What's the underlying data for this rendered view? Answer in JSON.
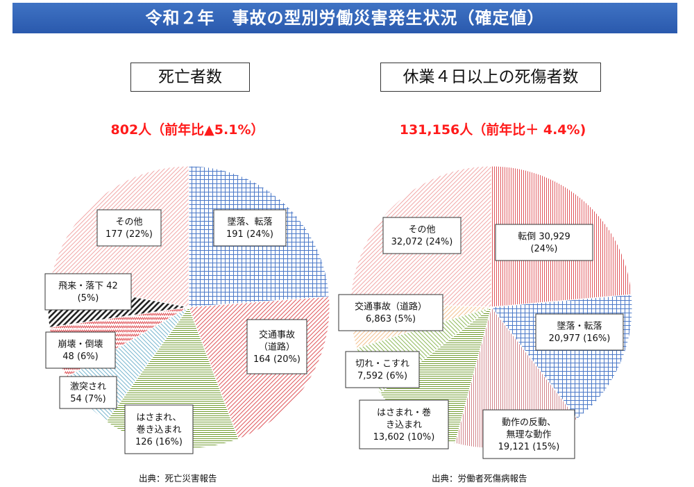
{
  "header": {
    "title": "令和２年　事故の型別労働災害発生状況（確定値）"
  },
  "charts": [
    {
      "box_title": "死亡者数",
      "total_label": "802人（前年比▲5.1%）",
      "source": "出典：死亡災害報告"
    },
    {
      "box_title": "休業４日以上の死傷者数",
      "total_label": "131,156人（前年比＋ 4.4%)",
      "source": "出典：労働者死傷病報告"
    }
  ],
  "chart_data": [
    {
      "type": "pie",
      "title": "死亡者数",
      "total": 802,
      "slices": [
        {
          "name": "墜落、転落",
          "value": 191,
          "percent": 24,
          "lines": [
            "墜落、転落",
            "191 (24%)"
          ],
          "color": "#4a78c8",
          "pattern": "grid"
        },
        {
          "name": "交通事故（道路）",
          "value": 164,
          "percent": 20,
          "lines": [
            "交通事故",
            "（道路）",
            "164 (20%)"
          ],
          "color": "#e0565b",
          "pattern": "diag"
        },
        {
          "name": "はさまれ、巻き込まれ",
          "value": 126,
          "percent": 16,
          "lines": [
            "はさまれ、",
            "巻き込まれ",
            "126 (16%)"
          ],
          "color": "#6f9a2c",
          "pattern": "hlines"
        },
        {
          "name": "激突され",
          "value": 54,
          "percent": 7,
          "lines": [
            "激突され",
            "54 (7%)"
          ],
          "color": "#78b6cf",
          "pattern": "diag2"
        },
        {
          "name": "崩壊・倒壊",
          "value": 48,
          "percent": 6,
          "lines": [
            "崩壊・倒壊",
            "48 (6%)"
          ],
          "color": "#e0565b",
          "pattern": "zigzag"
        },
        {
          "name": "飛来・落下",
          "value": 42,
          "percent": 5,
          "lines": [
            "飛来・落下 42",
            "(5%)"
          ],
          "color": "#222222",
          "pattern": "thick"
        },
        {
          "name": "その他",
          "value": 177,
          "percent": 22,
          "lines": [
            "その他",
            "177 (22%)"
          ],
          "color": "#f2a8a8",
          "pattern": "diag"
        }
      ]
    },
    {
      "type": "pie",
      "title": "休業４日以上の死傷者数",
      "total": 131156,
      "slices": [
        {
          "name": "転倒",
          "value": 30929,
          "percent": 24,
          "lines": [
            "転倒 30,929",
            "(24%)"
          ],
          "color": "#e0565b",
          "pattern": "vlines"
        },
        {
          "name": "墜落・転落",
          "value": 20977,
          "percent": 16,
          "lines": [
            "墜落・転落",
            "20,977 (16%)"
          ],
          "color": "#4a78c8",
          "pattern": "grid"
        },
        {
          "name": "動作の反動、無理な動作",
          "value": 19121,
          "percent": 15,
          "lines": [
            "動作の反動、",
            "無理な動作",
            "19,121  (15%)"
          ],
          "color": "#d2848a",
          "pattern": "vlines"
        },
        {
          "name": "はさまれ・巻き込まれ",
          "value": 13602,
          "percent": 10,
          "lines": [
            "はさまれ・巻",
            "き込まれ",
            "13,602 (10%)"
          ],
          "color": "#6f9a2c",
          "pattern": "hlines"
        },
        {
          "name": "切れ・こすれ",
          "value": 7592,
          "percent": 6,
          "lines": [
            "切れ・こすれ",
            "7,592  (6%)"
          ],
          "color": "#8fba5a",
          "pattern": "diag2"
        },
        {
          "name": "交通事故（道路）",
          "value": 6863,
          "percent": 5,
          "lines": [
            "交通事故（道路）",
            "6,863  (5%)"
          ],
          "color": "#f3c08e",
          "pattern": "diag"
        },
        {
          "name": "その他",
          "value": 32072,
          "percent": 24,
          "lines": [
            "その他",
            "32,072  (24%)"
          ],
          "color": "#f2a8a8",
          "pattern": "diag"
        }
      ]
    }
  ]
}
